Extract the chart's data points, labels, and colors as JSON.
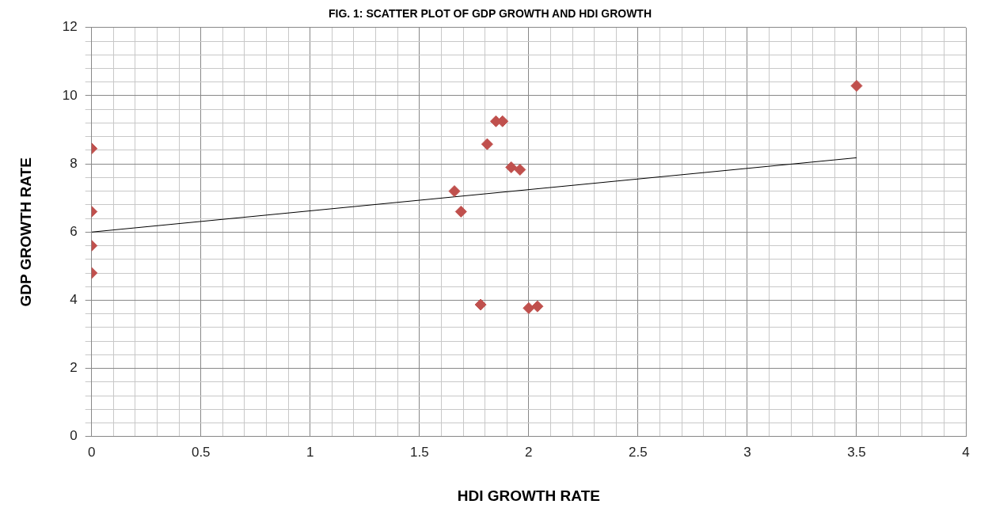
{
  "chart_data": {
    "type": "scatter",
    "title": "FIG. 1: SCATTER PLOT OF GDP GROWTH AND HDI GROWTH",
    "xlabel": "HDI GROWTH RATE",
    "ylabel": "GDP GROWTH RATE",
    "series": [
      {
        "marker": "diamond",
        "color": "#c0504d",
        "x": [
          0,
          0,
          0,
          0,
          1.66,
          1.69,
          1.81,
          1.85,
          1.88,
          1.92,
          1.96,
          1.78,
          2.0,
          2.04,
          3.5
        ],
        "values": [
          8.45,
          6.6,
          5.6,
          4.8,
          7.2,
          6.6,
          8.58,
          9.25,
          9.25,
          7.9,
          7.83,
          3.87,
          3.77,
          3.82,
          10.29
        ]
      },
      {
        "type": "line",
        "color": "#000000",
        "x": [
          0,
          3.5
        ],
        "values": [
          6.0,
          8.18
        ]
      }
    ],
    "grid": true,
    "legend": false,
    "xlim": [
      0,
      4
    ],
    "ylim": [
      0,
      12
    ],
    "xticks": [
      0,
      {
        "value": 0.1,
        "label": null
      },
      {
        "value": 0.2,
        "label": null
      },
      {
        "value": 0.3,
        "label": null
      },
      {
        "value": 0.4,
        "label": null
      },
      0.5,
      {
        "value": 0.6,
        "label": null
      },
      {
        "value": 0.7,
        "label": null
      },
      {
        "value": 0.8,
        "label": null
      },
      {
        "value": 0.9,
        "label": null
      },
      1,
      {
        "value": 1.1,
        "label": null
      },
      {
        "value": 1.2,
        "label": null
      },
      {
        "value": 1.3,
        "label": null
      },
      {
        "value": 1.4,
        "label": null
      },
      1.5,
      {
        "value": 1.6,
        "label": null
      },
      {
        "value": 1.7,
        "label": null
      },
      {
        "value": 1.8,
        "label": null
      },
      {
        "value": 1.9,
        "label": null
      },
      2,
      {
        "value": 2.1,
        "label": null
      },
      {
        "value": 2.2,
        "label": null
      },
      {
        "value": 2.3,
        "label": null
      },
      {
        "value": 2.4,
        "label": null
      },
      2.5,
      {
        "value": 2.6,
        "label": null
      },
      {
        "value": 2.7,
        "label": null
      },
      {
        "value": 2.8,
        "label": null
      },
      {
        "value": 2.9,
        "label": null
      },
      3,
      {
        "value": 3.1,
        "label": null
      },
      {
        "value": 3.2,
        "label": null
      },
      {
        "value": 3.3,
        "label": null
      },
      {
        "value": 3.4,
        "label": null
      },
      3.5,
      {
        "value": 3.6,
        "label": null
      },
      {
        "value": 3.7,
        "label": null
      },
      {
        "value": 3.8,
        "label": null
      },
      {
        "value": 3.9,
        "label": null
      },
      4
    ],
    "yticks": [
      0,
      {
        "value": 0.4,
        "label": null
      },
      {
        "value": 0.8,
        "label": null
      },
      {
        "value": 1.2,
        "label": null
      },
      {
        "value": 1.6,
        "label": null
      },
      2,
      {
        "value": 2.4,
        "label": null
      },
      {
        "value": 2.8,
        "label": null
      },
      {
        "value": 3.2,
        "label": null
      },
      {
        "value": 3.6,
        "label": null
      },
      4,
      {
        "value": 4.4,
        "label": null
      },
      {
        "value": 4.8,
        "label": null
      },
      {
        "value": 5.2,
        "label": null
      },
      {
        "value": 5.6,
        "label": null
      },
      6,
      {
        "value": 6.4,
        "label": null
      },
      {
        "value": 6.8,
        "label": null
      },
      {
        "value": 7.2,
        "label": null
      },
      {
        "value": 7.6,
        "label": null
      },
      8,
      {
        "value": 8.4,
        "label": null
      },
      {
        "value": 8.8,
        "label": null
      },
      {
        "value": 9.2,
        "label": null
      },
      {
        "value": 9.6,
        "label": null
      },
      10,
      {
        "value": 10.4,
        "label": null
      },
      {
        "value": 10.8,
        "label": null
      },
      {
        "value": 11.2,
        "label": null
      },
      {
        "value": 11.6,
        "label": null
      },
      12
    ]
  }
}
